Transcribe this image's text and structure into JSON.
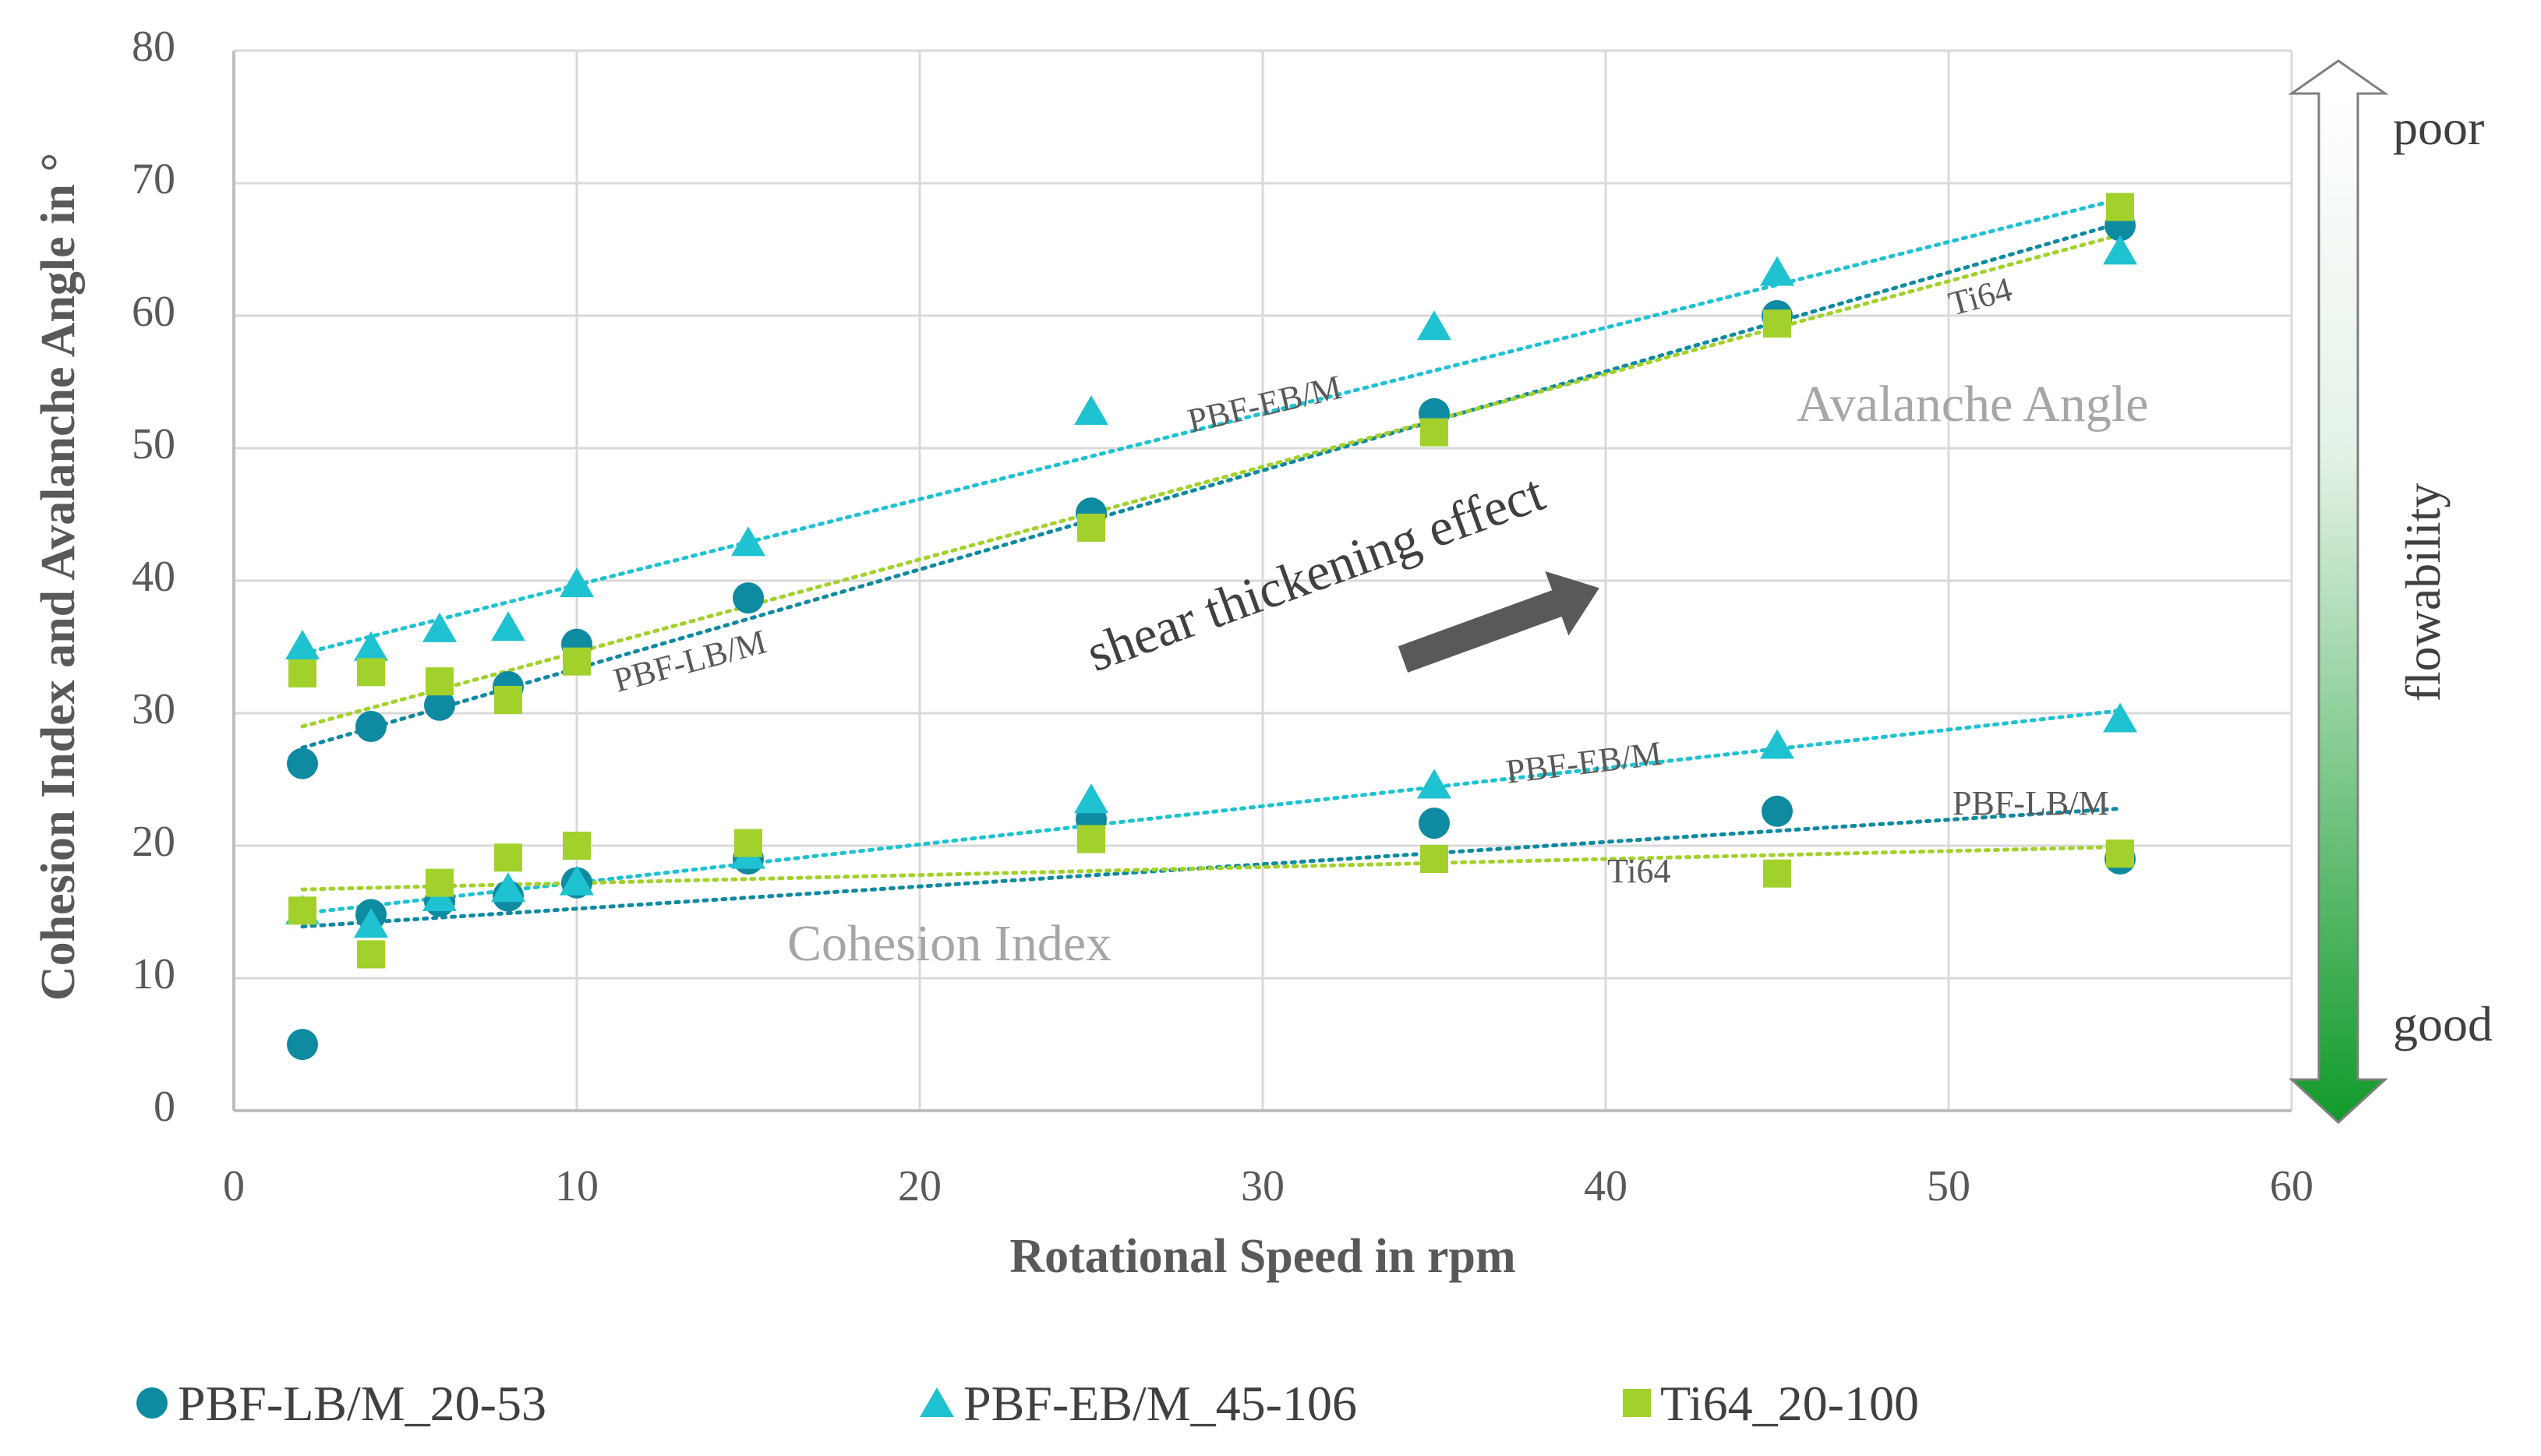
{
  "chart_data": {
    "type": "scatter",
    "xlabel": "Rotational Speed in rpm",
    "ylabel": "Cohesion Index and Avalanche Angle in °",
    "xlim": [
      0,
      60
    ],
    "ylim": [
      0,
      80
    ],
    "xticks": [
      "0",
      "10",
      "20",
      "30",
      "40",
      "50",
      "60"
    ],
    "yticks": [
      "0",
      "10",
      "20",
      "30",
      "40",
      "50",
      "60",
      "70",
      "80"
    ],
    "grid": true,
    "legend_position": "bottom",
    "x": [
      2,
      4,
      6,
      8,
      10,
      15,
      25,
      35,
      45,
      55
    ],
    "series": [
      {
        "name": "PBF-LB/M_20-53",
        "marker": "circle",
        "color": "#0e8aa1",
        "avalanche_angle": [
          26.2,
          29.0,
          30.6,
          32.0,
          35.2,
          38.7,
          45.1,
          52.6,
          60.0,
          66.8
        ],
        "cohesion_index": [
          5.0,
          14.8,
          15.8,
          16.2,
          17.2,
          19.0,
          22.0,
          21.7,
          22.6,
          19.0
        ],
        "fit_avalanche": [
          27.4,
          67.0
        ],
        "fit_cohesion": [
          13.9,
          22.8
        ]
      },
      {
        "name": "PBF-EB/M_45-106",
        "marker": "triangle",
        "color": "#1fc2d1",
        "avalanche_angle": [
          35.0,
          34.9,
          36.3,
          36.4,
          39.7,
          42.8,
          52.7,
          59.1,
          63.2,
          64.8
        ],
        "cohesion_index": [
          15.0,
          14.0,
          16.0,
          16.7,
          17.2,
          19.2,
          23.4,
          24.5,
          27.5,
          29.5
        ],
        "fit_avalanche": [
          34.5,
          68.8
        ],
        "fit_cohesion": [
          14.9,
          30.2
        ]
      },
      {
        "name": "Ti64_20-100",
        "marker": "square",
        "color": "#a3d12c",
        "avalanche_angle": [
          33.0,
          33.1,
          32.4,
          31.0,
          33.9,
          null,
          44.0,
          51.2,
          59.4,
          68.2
        ],
        "cohesion_index": [
          15.1,
          11.8,
          17.2,
          19.1,
          20.0,
          20.2,
          20.5,
          19.0,
          17.9,
          19.4
        ],
        "fit_avalanche": [
          29.0,
          66.1
        ],
        "fit_cohesion": [
          16.7,
          19.9
        ]
      }
    ]
  },
  "annotations": {
    "avalanche_label": "Avalanche Angle",
    "cohesion_label": "Cohesion Index",
    "shear_label": "shear thickening effect",
    "fit_labels": {
      "eb_avalanche": "PBF-EB/M",
      "lb_avalanche": "PBF-LB/M",
      "ti_avalanche": "Ti64",
      "eb_cohesion": "PBF-EB/M",
      "lb_cohesion": "PBF-LB/M",
      "ti_cohesion": "Ti64"
    }
  },
  "flowability": {
    "title": "flowability",
    "poor": "poor",
    "good": "good",
    "top_color": "#ffffff",
    "bottom_color": "#109a2a"
  }
}
